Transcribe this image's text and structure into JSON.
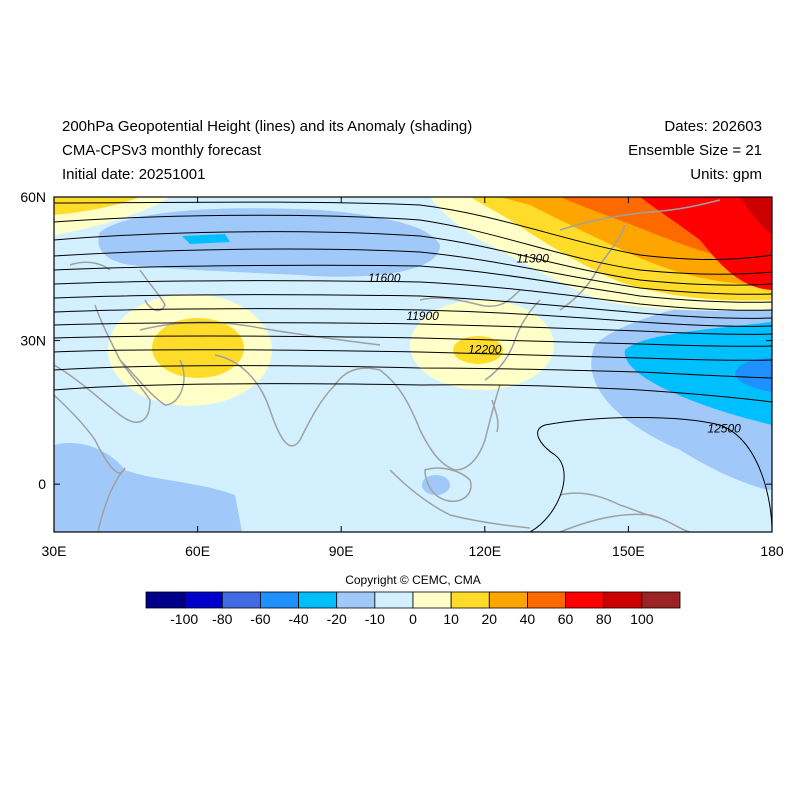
{
  "header": {
    "title_line1": "200hPa Geopotential Height (lines) and its Anomaly (shading)",
    "title_line2": "CMA-CPSv3 monthly forecast",
    "title_line3": "Initial date: 20251001",
    "dates": "Dates: 202603",
    "ensemble": "Ensemble Size = 21",
    "units": "Units: gpm"
  },
  "map": {
    "lon_range": [
      30,
      180
    ],
    "lat_range": [
      -10,
      60
    ],
    "lat_ticks": [
      {
        "value": 60,
        "label": "60N"
      },
      {
        "value": 30,
        "label": "30N"
      },
      {
        "value": 0,
        "label": "0"
      }
    ],
    "lon_ticks": [
      {
        "value": 30,
        "label": "30E"
      },
      {
        "value": 60,
        "label": "60E"
      },
      {
        "value": 90,
        "label": "90E"
      },
      {
        "value": 120,
        "label": "120E"
      },
      {
        "value": 150,
        "label": "150E"
      },
      {
        "value": 180,
        "label": "180"
      }
    ],
    "contour_labels": [
      {
        "text": "11300",
        "lon": 130,
        "lat": 46.5
      },
      {
        "text": "11600",
        "lon": 99,
        "lat": 42.5
      },
      {
        "text": "11900",
        "lon": 107,
        "lat": 34.5
      },
      {
        "text": "12200",
        "lon": 120,
        "lat": 27.5
      },
      {
        "text": "12500",
        "lon": 170,
        "lat": 11
      }
    ]
  },
  "colorbar": {
    "colors": [
      "#00008b",
      "#0000cd",
      "#4169e1",
      "#1e90ff",
      "#00bfff",
      "#a0c8f8",
      "#d2f0ff",
      "#ffffc8",
      "#ffdc2a",
      "#ffa500",
      "#ff6a00",
      "#ff0000",
      "#cd0000",
      "#9b2323"
    ],
    "labels": [
      "-100",
      "-80",
      "-60",
      "-40",
      "-20",
      "-10",
      "0",
      "10",
      "20",
      "40",
      "60",
      "80",
      "100"
    ]
  },
  "copyright": "Copyright © CEMC, CMA"
}
